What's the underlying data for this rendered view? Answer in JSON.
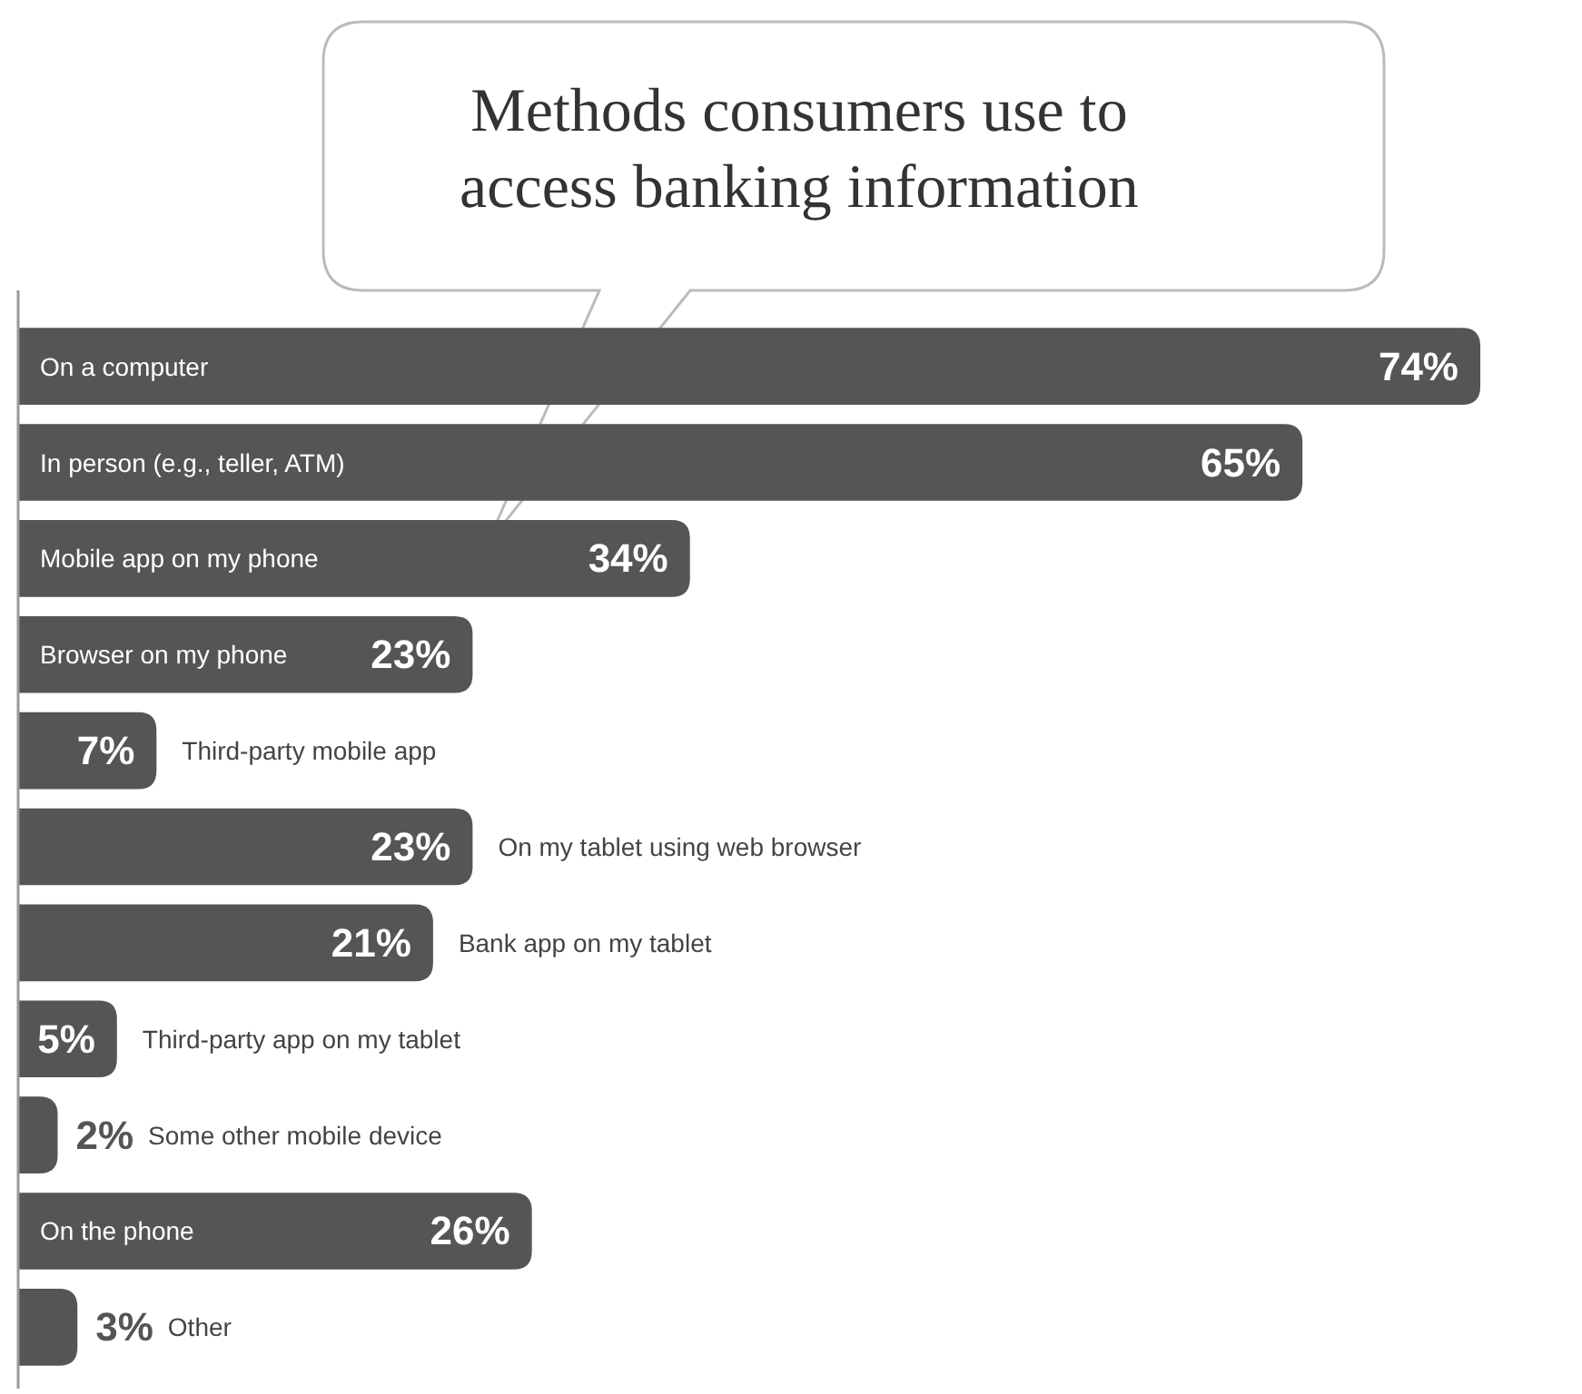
{
  "chart_data": {
    "type": "bar",
    "orientation": "horizontal",
    "title": "Methods consumers use to access banking information",
    "categories": [
      "On a computer",
      "In person (e.g., teller, ATM)",
      "Mobile app on my phone",
      "Browser on my phone",
      "Third-party mobile app",
      "On my tablet using web browser",
      "Bank app on my tablet",
      "Third-party app on my tablet",
      "Some other mobile device",
      "On the phone",
      "Other"
    ],
    "values": [
      74,
      65,
      34,
      23,
      7,
      23,
      21,
      5,
      2,
      26,
      3
    ],
    "value_labels": [
      "74%",
      "65%",
      "34%",
      "23%",
      "7%",
      "23%",
      "21%",
      "5%",
      "2%",
      "26%",
      "3%"
    ],
    "color": "#555555"
  }
}
